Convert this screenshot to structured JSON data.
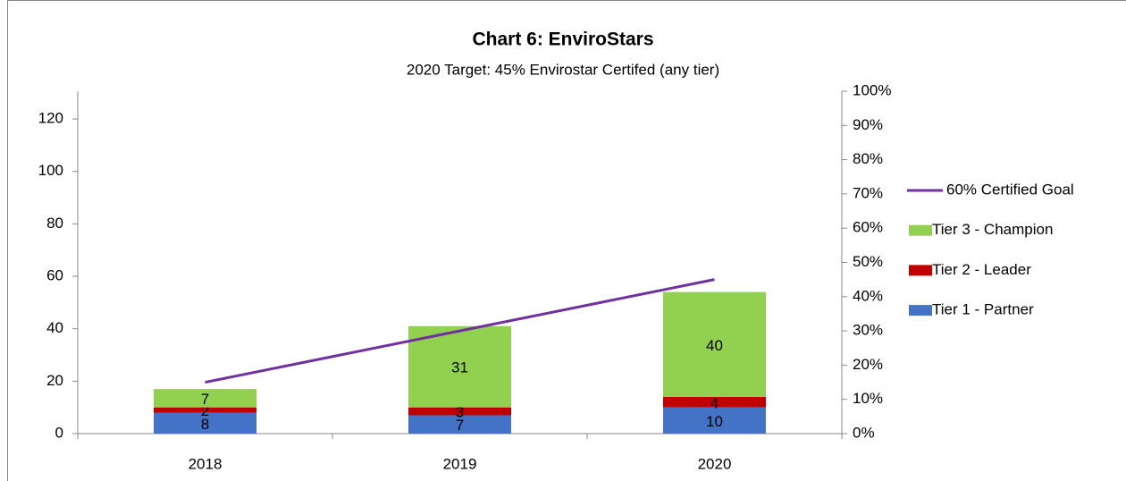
{
  "chart_data": {
    "type": "bar",
    "stacked": true,
    "title": "Chart 6: EnviroStars",
    "subtitle": "2020 Target:  45% Envirostar Certifed (any tier)",
    "categories": [
      "2018",
      "2019",
      "2020"
    ],
    "series": [
      {
        "name": "Tier 1 - Partner",
        "color": "#4472c4",
        "values": [
          8,
          7,
          10
        ]
      },
      {
        "name": "Tier 2 - Leader",
        "color": "#c00000",
        "values": [
          2,
          3,
          4
        ]
      },
      {
        "name": "Tier 3 - Champion",
        "color": "#92d050",
        "values": [
          7,
          31,
          40
        ]
      },
      {
        "name": "60% Certified Goal",
        "color": "#7030a0",
        "type": "line",
        "axis": "y2",
        "values": [
          15,
          30,
          45
        ]
      }
    ],
    "ylim": [
      0,
      130.6
    ],
    "yticks": [
      0,
      20,
      40,
      60,
      80,
      100,
      120
    ],
    "y2lim": [
      0,
      100
    ],
    "y2ticks": [
      {
        "value": 0,
        "label": "0%"
      },
      {
        "value": 10,
        "label": "10%"
      },
      {
        "value": 20,
        "label": "20%"
      },
      {
        "value": 30,
        "label": "30%"
      },
      {
        "value": 40,
        "label": "40%"
      },
      {
        "value": 50,
        "label": "50%"
      },
      {
        "value": 60,
        "label": "60%"
      },
      {
        "value": 70,
        "label": "70%"
      },
      {
        "value": 80,
        "label": "80%"
      },
      {
        "value": 90,
        "label": "90%"
      },
      {
        "value": 100,
        "label": "100%"
      }
    ],
    "legend": "right"
  }
}
